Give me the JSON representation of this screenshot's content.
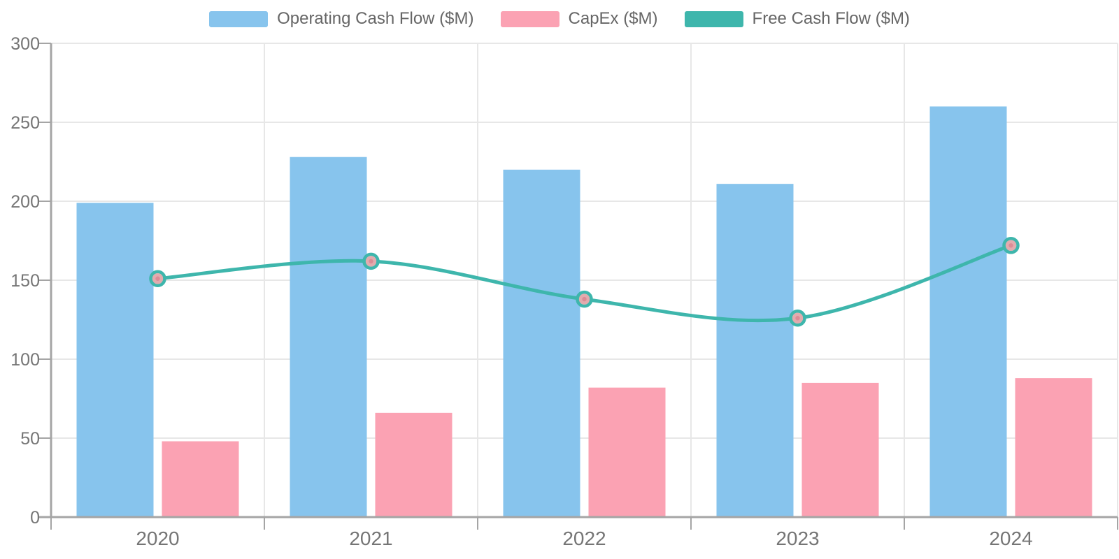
{
  "page": {
    "background": "#ffffff"
  },
  "colors": {
    "axis_line": "#A5A5A5",
    "grid_line": "#E7E7E7",
    "tick_label": "#757575",
    "legend_text": "#666666"
  },
  "chart_data": {
    "type": "combo",
    "title": "",
    "categories": [
      "2020",
      "2021",
      "2022",
      "2023",
      "2024"
    ],
    "ylim": [
      0,
      300
    ],
    "yticks": [
      0,
      50,
      100,
      150,
      200,
      250,
      300
    ],
    "grid": true,
    "legend_position": "top-center",
    "series": [
      {
        "key": "operating-cash-flow",
        "name": "Operating Cash Flow ($M)",
        "type": "bar",
        "color": "#87C4ED",
        "values": [
          199,
          228,
          220,
          211,
          260
        ]
      },
      {
        "key": "capex",
        "name": "CapEx ($M)",
        "type": "bar",
        "color": "#FBA2B3",
        "values": [
          48,
          66,
          82,
          85,
          88
        ]
      },
      {
        "key": "free-cash-flow",
        "name": "Free Cash Flow ($M)",
        "type": "line",
        "color": "#3EB6AC",
        "marker_inner": "#E2ABAE",
        "marker_dot": "#DB8C96",
        "values": [
          151,
          162,
          138,
          126,
          172
        ]
      }
    ]
  }
}
